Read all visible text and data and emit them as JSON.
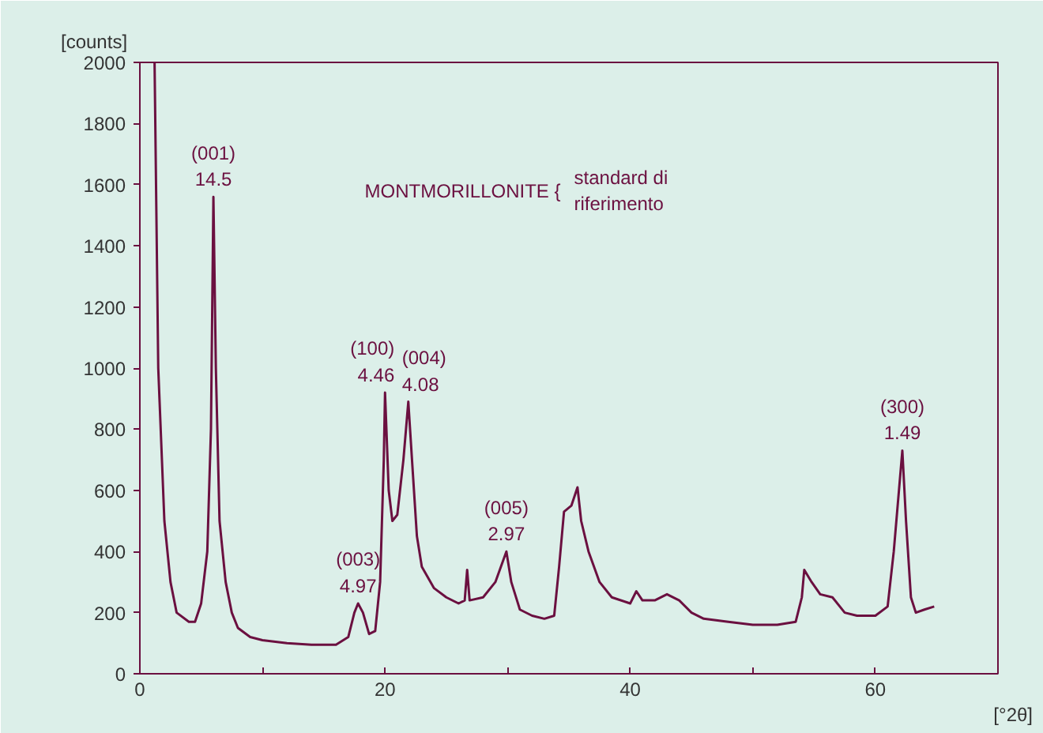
{
  "chart_data": {
    "type": "line",
    "title": "MONTMORILLONITE {",
    "subtitle": "standard di\nriferimento",
    "xlabel": "[°2θ]",
    "ylabel": "[counts]",
    "x": [
      1.2,
      1.5,
      2,
      2.5,
      3,
      4,
      4.5,
      5,
      5.5,
      5.8,
      6.0,
      6.2,
      6.5,
      7,
      7.5,
      8,
      9,
      10,
      12,
      14,
      16,
      17,
      17.5,
      17.8,
      18.2,
      18.7,
      19.2,
      19.6,
      19.9,
      20.0,
      20.3,
      20.6,
      21,
      21.5,
      21.9,
      22.2,
      22.6,
      23,
      24,
      25,
      26,
      26.5,
      26.7,
      26.9,
      28,
      29,
      29.9,
      30.3,
      31,
      32,
      33,
      33.8,
      34.2,
      34.6,
      35.2,
      35.7,
      36,
      36.6,
      37.5,
      38.5,
      40,
      40.5,
      41,
      42,
      43,
      44,
      45,
      46,
      48,
      50,
      52,
      53.5,
      54,
      54.2,
      54.8,
      55.5,
      56.5,
      57.5,
      58.5,
      60,
      61,
      61.5,
      62.2,
      62.5,
      62.9,
      63.3,
      64,
      64.8
    ],
    "values": [
      2000,
      1000,
      500,
      300,
      200,
      170,
      170,
      230,
      400,
      800,
      1560,
      1000,
      500,
      300,
      200,
      150,
      120,
      110,
      100,
      95,
      95,
      120,
      200,
      230,
      200,
      130,
      140,
      300,
      700,
      920,
      600,
      500,
      520,
      700,
      890,
      700,
      450,
      350,
      280,
      250,
      230,
      240,
      340,
      240,
      250,
      300,
      400,
      300,
      210,
      190,
      180,
      190,
      350,
      530,
      550,
      610,
      500,
      400,
      300,
      250,
      230,
      270,
      240,
      240,
      260,
      240,
      200,
      180,
      170,
      160,
      160,
      170,
      250,
      340,
      300,
      260,
      250,
      200,
      190,
      190,
      220,
      400,
      730,
      500,
      250,
      200,
      210,
      220
    ],
    "color": "#6b1040",
    "xlim": [
      0,
      70
    ],
    "ylim": [
      0,
      2000
    ],
    "xticks": [
      0,
      {
        "value": 10,
        "label": null
      },
      20,
      {
        "value": 30,
        "label": null
      },
      40,
      {
        "value": 50,
        "label": null
      },
      60,
      {
        "value": 70,
        "label": null
      }
    ],
    "yticks": [
      0,
      200,
      400,
      600,
      800,
      1000,
      1200,
      1400,
      1600,
      1800,
      2000
    ],
    "annotations": [
      {
        "text": "(001)\n14.5",
        "x": 6.0,
        "y": 1560
      },
      {
        "text": "(003)\n4.97",
        "x": 17.8,
        "y": 230
      },
      {
        "text": "(100)\n4.46",
        "x": 20.0,
        "y": 920
      },
      {
        "text": "(004)\n4.08",
        "x": 21.9,
        "y": 890
      },
      {
        "text": "(005)\n2.97",
        "x": 29.9,
        "y": 400
      },
      {
        "text": "(300)\n1.49",
        "x": 62.2,
        "y": 730
      }
    ],
    "grid": false,
    "line_style": "solid",
    "marker": "none"
  }
}
